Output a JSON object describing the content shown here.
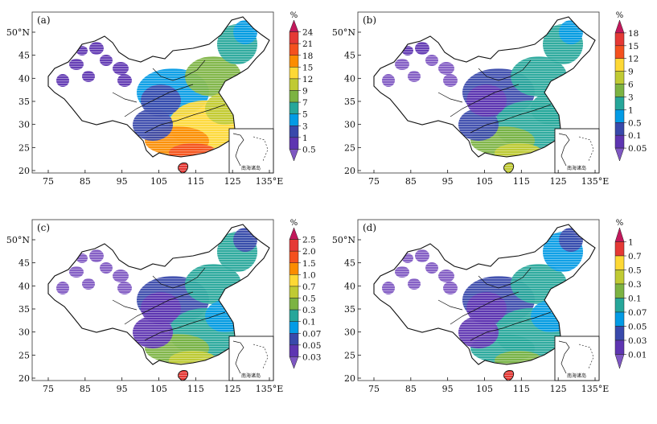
{
  "panels": [
    {
      "label": "(a)",
      "legend_unit": "%",
      "legend_ticks": [
        "24",
        "21",
        "18",
        "15",
        "12",
        "9",
        "7",
        "5",
        "3",
        "1",
        "0.5"
      ],
      "legend_colors": [
        "#c2185b",
        "#e53935",
        "#f4511e",
        "#fb8c00",
        "#fdd835",
        "#c0ca33",
        "#7cb342",
        "#26a69a",
        "#039be5",
        "#3949ab",
        "#5e35b1",
        "#7e57c2"
      ]
    },
    {
      "label": "(b)",
      "legend_unit": "%",
      "legend_ticks": [
        "18",
        "15",
        "12",
        "9",
        "6",
        "3",
        "1",
        "0.5",
        "0.1",
        "0.05"
      ],
      "legend_colors": [
        "#c2185b",
        "#e53935",
        "#f4511e",
        "#fdd835",
        "#c0ca33",
        "#7cb342",
        "#26a69a",
        "#039be5",
        "#3949ab",
        "#5e35b1",
        "#7e57c2"
      ]
    },
    {
      "label": "(c)",
      "legend_unit": "%",
      "legend_ticks": [
        "2.5",
        "2.0",
        "1.5",
        "1.0",
        "0.7",
        "0.5",
        "0.3",
        "0.1",
        "0.07",
        "0.05",
        "0.03"
      ],
      "legend_colors": [
        "#c2185b",
        "#e53935",
        "#f4511e",
        "#fb8c00",
        "#fdd835",
        "#c0ca33",
        "#7cb342",
        "#26a69a",
        "#039be5",
        "#3949ab",
        "#5e35b1",
        "#7e57c2"
      ]
    },
    {
      "label": "(d)",
      "legend_unit": "%",
      "legend_ticks": [
        "1",
        "0.7",
        "0.5",
        "0.3",
        "0.1",
        "0.07",
        "0.05",
        "0.03",
        "0.01"
      ],
      "legend_colors": [
        "#c2185b",
        "#e53935",
        "#fdd835",
        "#c0ca33",
        "#7cb342",
        "#26a69a",
        "#039be5",
        "#3949ab",
        "#5e35b1",
        "#7e57c2"
      ]
    }
  ],
  "axes": {
    "x_ticks": [
      "75",
      "85",
      "95",
      "105",
      "115",
      "125",
      "135°E"
    ],
    "y_ticks": [
      "50°N",
      "45",
      "40",
      "35",
      "30",
      "25",
      "20"
    ]
  },
  "inset_label": "南海诸岛",
  "colors": {
    "border": "#111111",
    "dominant": [
      "#e53935",
      "#26a69a",
      "#f4511e",
      "#5e35b1"
    ]
  }
}
